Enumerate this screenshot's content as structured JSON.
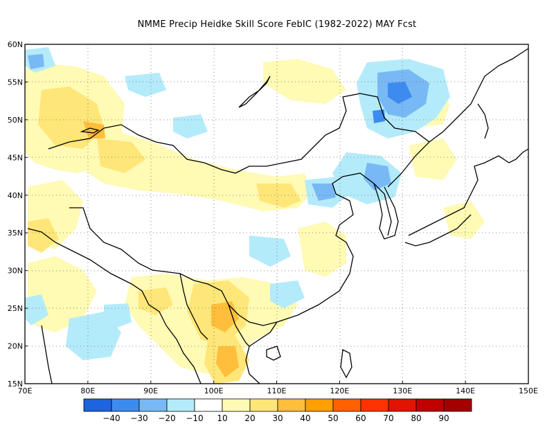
{
  "title": "NMME Precip Heidke Skill Score FebIC (1982-2022) MAY Fcst",
  "map": {
    "lon_range": [
      70,
      150
    ],
    "lat_range": [
      15,
      60
    ],
    "lon_ticks": [
      "70E",
      "80E",
      "90E",
      "100E",
      "110E",
      "120E",
      "130E",
      "140E",
      "150E"
    ],
    "lat_ticks": [
      "60N",
      "55N",
      "50N",
      "45N",
      "40N",
      "35N",
      "30N",
      "25N",
      "20N",
      "15N"
    ],
    "gridlines": "dotted"
  },
  "colorbar": {
    "labels": [
      "−40",
      "−30",
      "−20",
      "−10",
      "10",
      "20",
      "30",
      "40",
      "50",
      "60",
      "70",
      "80",
      "90"
    ],
    "colors": [
      "#1e63e0",
      "#3c8cf0",
      "#78b9f5",
      "#b4ebfa",
      "#ffffff",
      "#fffab4",
      "#ffe678",
      "#ffbe3c",
      "#ffa000",
      "#ff6000",
      "#ff3200",
      "#e11400",
      "#c00000",
      "#a50000"
    ]
  },
  "regions": [
    {
      "name": "mongolia-positive",
      "category": "20"
    },
    {
      "name": "manchuria-negative",
      "category": "-20"
    },
    {
      "name": "indochina-positive",
      "category": "40"
    },
    {
      "name": "central-asia-positive",
      "category": "20"
    }
  ]
}
